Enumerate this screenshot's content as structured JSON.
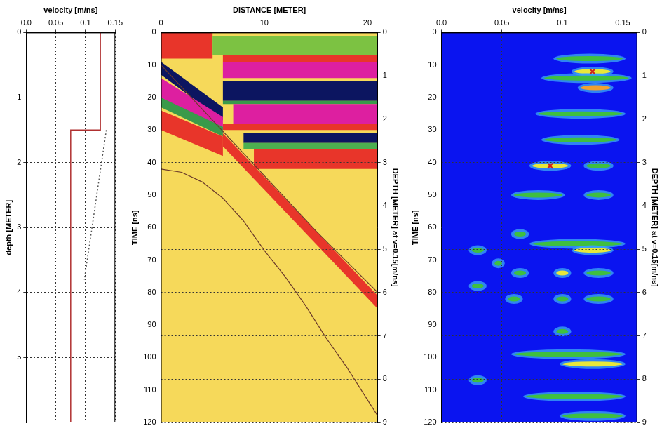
{
  "chart_data": [
    {
      "type": "line",
      "xlabel": "velocity [m/ns]",
      "ylabel": "depth [METER]",
      "xlim": [
        0,
        0.15
      ],
      "xticks": [
        {
          "value": 0,
          "label": "0.0"
        },
        0.05,
        0.1,
        0.15
      ],
      "ylim": [
        0,
        6
      ],
      "yticks": [
        0,
        1,
        2,
        3,
        4,
        5
      ],
      "grid": true,
      "series": [
        {
          "color": "#b03030",
          "line_style": "solid",
          "x": [
            0.125,
            0.125,
            0.075,
            0.075
          ],
          "values": [
            0,
            1.5,
            1.5,
            6
          ]
        },
        {
          "color": "#555555",
          "line_style": "dotted",
          "x": [
            0.135,
            0.098
          ],
          "values": [
            1.5,
            3.8
          ]
        }
      ]
    },
    {
      "type": "radargram",
      "xlabel": "DISTANCE [METER]",
      "ylabel": "TIME [ns]",
      "y2label": "DEPTH [METER] at v=0.15[m/ns]",
      "xlim": [
        0,
        21
      ],
      "xticks": [
        0,
        10,
        20
      ],
      "ylim": [
        0,
        120
      ],
      "yticks": [
        0,
        10,
        20,
        30,
        40,
        50,
        60,
        70,
        80,
        90,
        100,
        110,
        120
      ],
      "y2lim": [
        0,
        9
      ],
      "y2ticks": [
        0,
        1,
        2,
        3,
        4,
        5,
        6,
        7,
        8,
        9
      ],
      "grid": true,
      "color": "#f6d95a",
      "reflections": [
        {
          "color": "#e8352a",
          "x": [
            0,
            5,
            5,
            0
          ],
          "t": [
            0,
            0,
            8,
            8
          ]
        },
        {
          "color": "#7cc242",
          "x": [
            5,
            21,
            21,
            5
          ],
          "t": [
            1,
            1,
            7,
            7
          ]
        },
        {
          "color": "#e8352a",
          "x": [
            6,
            21,
            21,
            6
          ],
          "t": [
            7,
            7,
            9,
            9
          ]
        },
        {
          "color": "#dd1fa0",
          "x": [
            6,
            21,
            21,
            6
          ],
          "t": [
            9,
            9,
            14,
            14
          ]
        },
        {
          "color": "#0c1560",
          "x": [
            6,
            21,
            21,
            6
          ],
          "t": [
            15,
            15,
            21,
            21
          ]
        },
        {
          "color": "#3a9a4a",
          "x": [
            6,
            21,
            21,
            6
          ],
          "t": [
            21,
            21,
            22,
            22
          ]
        },
        {
          "color": "#dd1fa0",
          "x": [
            7,
            21,
            21,
            7
          ],
          "t": [
            22,
            22,
            28,
            28
          ]
        },
        {
          "color": "#e8352a",
          "x": [
            6,
            21,
            21,
            6
          ],
          "t": [
            28,
            28,
            30,
            30
          ]
        },
        {
          "color": "#0c1560",
          "x": [
            8,
            21,
            21,
            8
          ],
          "t": [
            31,
            31,
            34,
            34
          ]
        },
        {
          "color": "#4caf50",
          "x": [
            8,
            21,
            21,
            8
          ],
          "t": [
            34,
            34,
            36,
            36
          ]
        },
        {
          "color": "#e8352a",
          "x": [
            9,
            21,
            21,
            9
          ],
          "t": [
            36,
            36,
            42,
            42
          ]
        },
        {
          "color": "#0c1560",
          "x": [
            0,
            6,
            6,
            0
          ],
          "t": [
            9,
            23,
            27,
            13
          ]
        },
        {
          "color": "#dd1fa0",
          "x": [
            0,
            6,
            6,
            0
          ],
          "t": [
            14,
            26,
            31,
            20
          ]
        },
        {
          "color": "#3a9a4a",
          "x": [
            0,
            6,
            6,
            0
          ],
          "t": [
            20,
            29,
            32,
            23
          ]
        },
        {
          "color": "#e8352a",
          "x": [
            0,
            6,
            6,
            0
          ],
          "t": [
            24,
            32,
            38,
            30
          ]
        },
        {
          "color": "#e8352a",
          "x": [
            6,
            21,
            21,
            6
          ],
          "t": [
            31,
            81,
            85,
            35
          ]
        }
      ],
      "series": [
        {
          "color": "#6b3a2a",
          "line_style": "solid",
          "x": [
            0,
            5,
            10,
            15,
            21
          ],
          "values": [
            10,
            27,
            44,
            61,
            80
          ]
        },
        {
          "color": "#6b3a2a",
          "line_style": "solid",
          "x": [
            0,
            2,
            4,
            6,
            8,
            10,
            12,
            14,
            16,
            18,
            20,
            21
          ],
          "values": [
            42,
            43,
            46,
            51,
            58,
            67,
            75,
            84,
            94,
            103,
            113,
            118
          ]
        }
      ]
    },
    {
      "type": "heatmap",
      "xlabel": "velocity [m/ns]",
      "ylabel": "TIME [ns]",
      "y2label": "DEPTH [METER] at v=0.15[m/ns]",
      "xlim": [
        0,
        0.162
      ],
      "xticks": [
        {
          "value": 0,
          "label": "0.0"
        },
        0.05,
        0.1,
        0.15
      ],
      "ylim": [
        0,
        120
      ],
      "yticks": [
        0,
        10,
        20,
        30,
        40,
        50,
        60,
        70,
        80,
        90,
        100,
        110,
        120
      ],
      "y2lim": [
        0,
        9
      ],
      "y2ticks": [
        0,
        1,
        2,
        3,
        4,
        5,
        6,
        7,
        8,
        9
      ],
      "grid": true,
      "color": "#0a14f0",
      "blobs": [
        {
          "time": 8,
          "v_from": 0.095,
          "v_to": 0.15,
          "color": "#3fbf3f"
        },
        {
          "time": 12,
          "v_from": 0.11,
          "v_to": 0.14,
          "color": "#e8e83a"
        },
        {
          "time": 14,
          "v_from": 0.085,
          "v_to": 0.155,
          "color": "#3fbf3f"
        },
        {
          "time": 17,
          "v_from": 0.115,
          "v_to": 0.14,
          "color": "#f0a030"
        },
        {
          "time": 25,
          "v_from": 0.08,
          "v_to": 0.15,
          "color": "#3fbf3f"
        },
        {
          "time": 33,
          "v_from": 0.085,
          "v_to": 0.145,
          "color": "#3fbf3f"
        },
        {
          "time": 41,
          "v_from": 0.075,
          "v_to": 0.105,
          "color": "#e8e83a"
        },
        {
          "time": 41,
          "v_from": 0.12,
          "v_to": 0.14,
          "color": "#3fbf3f"
        },
        {
          "time": 50,
          "v_from": 0.06,
          "v_to": 0.1,
          "color": "#3fbf3f"
        },
        {
          "time": 50,
          "v_from": 0.12,
          "v_to": 0.14,
          "color": "#3fbf3f"
        },
        {
          "time": 62,
          "v_from": 0.06,
          "v_to": 0.07,
          "color": "#3fbf3f"
        },
        {
          "time": 65,
          "v_from": 0.075,
          "v_to": 0.15,
          "color": "#3fbf3f"
        },
        {
          "time": 67,
          "v_from": 0.11,
          "v_to": 0.14,
          "color": "#e8e83a"
        },
        {
          "time": 67,
          "v_from": 0.025,
          "v_to": 0.035,
          "color": "#3fbf3f"
        },
        {
          "time": 71,
          "v_from": 0.044,
          "v_to": 0.05,
          "color": "#3fbf3f"
        },
        {
          "time": 74,
          "v_from": 0.06,
          "v_to": 0.07,
          "color": "#3fbf3f"
        },
        {
          "time": 74,
          "v_from": 0.095,
          "v_to": 0.105,
          "color": "#e8e83a"
        },
        {
          "time": 74,
          "v_from": 0.12,
          "v_to": 0.14,
          "color": "#3fbf3f"
        },
        {
          "time": 78,
          "v_from": 0.025,
          "v_to": 0.035,
          "color": "#3fbf3f"
        },
        {
          "time": 82,
          "v_from": 0.055,
          "v_to": 0.065,
          "color": "#3fbf3f"
        },
        {
          "time": 82,
          "v_from": 0.095,
          "v_to": 0.105,
          "color": "#3fbf3f"
        },
        {
          "time": 82,
          "v_from": 0.12,
          "v_to": 0.14,
          "color": "#3fbf3f"
        },
        {
          "time": 92,
          "v_from": 0.095,
          "v_to": 0.105,
          "color": "#3fbf3f"
        },
        {
          "time": 99,
          "v_from": 0.06,
          "v_to": 0.15,
          "color": "#3fbf3f"
        },
        {
          "time": 102,
          "v_from": 0.1,
          "v_to": 0.15,
          "color": "#e8e83a"
        },
        {
          "time": 107,
          "v_from": 0.025,
          "v_to": 0.035,
          "color": "#3fbf3f"
        },
        {
          "time": 112,
          "v_from": 0.07,
          "v_to": 0.15,
          "color": "#3fbf3f"
        },
        {
          "time": 118,
          "v_from": 0.1,
          "v_to": 0.15,
          "color": "#3fbf3f"
        }
      ],
      "picks": {
        "color": "#d02020",
        "marker": "x",
        "velocity": [
          0.125,
          0.09
        ],
        "time": [
          12,
          41
        ]
      }
    }
  ]
}
